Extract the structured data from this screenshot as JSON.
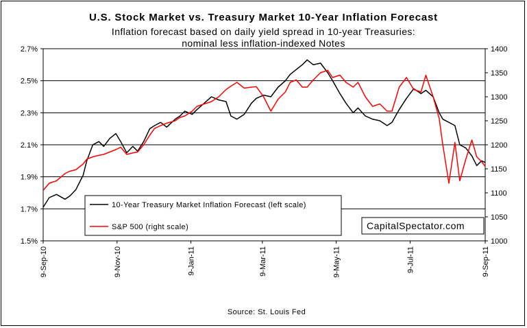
{
  "chart_data": {
    "type": "line",
    "title": "U.S. Stock Market vs. Treasury Market 10-Year Inflation Forecast",
    "subtitle_line1": "Inflation forecast based on daily yield spread in 10-year Treasuries:",
    "subtitle_line2": "nominal less inflation-indexed Notes",
    "source": "Source: St. Louis Fed",
    "watermark": "CapitalSpectator.com",
    "x_tick_labels": [
      "9-Sep-10",
      "9-Nov-10",
      "9-Jan-11",
      "9-Mar-11",
      "9-May-11",
      "9-Jul-11",
      "9-Sep-11"
    ],
    "y_left": {
      "ticks": [
        "1.5%",
        "1.7%",
        "1.9%",
        "2.1%",
        "2.3%",
        "2.5%",
        "2.7%"
      ],
      "min": 1.5,
      "max": 2.7
    },
    "y_right": {
      "ticks": [
        "1000",
        "1050",
        "1100",
        "1150",
        "1200",
        "1250",
        "1300",
        "1350",
        "1400"
      ],
      "min": 1000,
      "max": 1400
    },
    "grid": "horizontal",
    "legend_position": "bottom-left inside plot",
    "series": [
      {
        "name": "10-Year Treasury Market Inflation Forecast (left scale)",
        "axis": "left",
        "color": "#000000",
        "points": [
          [
            "2010-09-09",
            1.71
          ],
          [
            "2010-09-14",
            1.77
          ],
          [
            "2010-09-20",
            1.79
          ],
          [
            "2010-09-27",
            1.76
          ],
          [
            "2010-10-01",
            1.78
          ],
          [
            "2010-10-06",
            1.82
          ],
          [
            "2010-10-12",
            1.91
          ],
          [
            "2010-10-15",
            2.0
          ],
          [
            "2010-10-20",
            2.1
          ],
          [
            "2010-10-25",
            2.12
          ],
          [
            "2010-10-29",
            2.09
          ],
          [
            "2010-11-03",
            2.14
          ],
          [
            "2010-11-08",
            2.17
          ],
          [
            "2010-11-12",
            2.12
          ],
          [
            "2010-11-17",
            2.05
          ],
          [
            "2010-11-22",
            2.09
          ],
          [
            "2010-11-26",
            2.06
          ],
          [
            "2010-12-01",
            2.12
          ],
          [
            "2010-12-06",
            2.2
          ],
          [
            "2010-12-10",
            2.22
          ],
          [
            "2010-12-15",
            2.24
          ],
          [
            "2010-12-20",
            2.21
          ],
          [
            "2010-12-27",
            2.26
          ],
          [
            "2010-12-31",
            2.28
          ],
          [
            "2011-01-04",
            2.31
          ],
          [
            "2011-01-10",
            2.29
          ],
          [
            "2011-01-14",
            2.32
          ],
          [
            "2011-01-20",
            2.36
          ],
          [
            "2011-01-26",
            2.4
          ],
          [
            "2011-02-01",
            2.38
          ],
          [
            "2011-02-07",
            2.37
          ],
          [
            "2011-02-11",
            2.28
          ],
          [
            "2011-02-16",
            2.26
          ],
          [
            "2011-02-22",
            2.29
          ],
          [
            "2011-02-28",
            2.36
          ],
          [
            "2011-03-04",
            2.39
          ],
          [
            "2011-03-10",
            2.41
          ],
          [
            "2011-03-16",
            2.4
          ],
          [
            "2011-03-22",
            2.46
          ],
          [
            "2011-03-28",
            2.5
          ],
          [
            "2011-04-01",
            2.54
          ],
          [
            "2011-04-06",
            2.57
          ],
          [
            "2011-04-11",
            2.6
          ],
          [
            "2011-04-15",
            2.63
          ],
          [
            "2011-04-20",
            2.6
          ],
          [
            "2011-04-26",
            2.61
          ],
          [
            "2011-05-02",
            2.55
          ],
          [
            "2011-05-06",
            2.5
          ],
          [
            "2011-05-12",
            2.42
          ],
          [
            "2011-05-17",
            2.36
          ],
          [
            "2011-05-23",
            2.3
          ],
          [
            "2011-05-27",
            2.33
          ],
          [
            "2011-06-02",
            2.28
          ],
          [
            "2011-06-08",
            2.26
          ],
          [
            "2011-06-14",
            2.25
          ],
          [
            "2011-06-20",
            2.22
          ],
          [
            "2011-06-24",
            2.24
          ],
          [
            "2011-06-30",
            2.32
          ],
          [
            "2011-07-06",
            2.39
          ],
          [
            "2011-07-12",
            2.45
          ],
          [
            "2011-07-18",
            2.42
          ],
          [
            "2011-07-22",
            2.44
          ],
          [
            "2011-07-28",
            2.4
          ],
          [
            "2011-08-02",
            2.3
          ],
          [
            "2011-08-05",
            2.26
          ],
          [
            "2011-08-10",
            2.24
          ],
          [
            "2011-08-15",
            2.22
          ],
          [
            "2011-08-19",
            2.1
          ],
          [
            "2011-08-24",
            2.08
          ],
          [
            "2011-08-29",
            2.03
          ],
          [
            "2011-09-02",
            1.97
          ],
          [
            "2011-09-06",
            2.0
          ],
          [
            "2011-09-09",
            1.99
          ]
        ]
      },
      {
        "name": "S&P 500 (right scale)",
        "axis": "right",
        "color": "#ff0000",
        "points": [
          [
            "2010-09-09",
            1105
          ],
          [
            "2010-09-14",
            1120
          ],
          [
            "2010-09-20",
            1125
          ],
          [
            "2010-09-27",
            1140
          ],
          [
            "2010-10-01",
            1145
          ],
          [
            "2010-10-06",
            1148
          ],
          [
            "2010-10-12",
            1160
          ],
          [
            "2010-10-15",
            1170
          ],
          [
            "2010-10-20",
            1175
          ],
          [
            "2010-10-25",
            1178
          ],
          [
            "2010-10-29",
            1180
          ],
          [
            "2010-11-03",
            1185
          ],
          [
            "2010-11-08",
            1190
          ],
          [
            "2010-11-12",
            1195
          ],
          [
            "2010-11-17",
            1180
          ],
          [
            "2010-11-22",
            1183
          ],
          [
            "2010-11-26",
            1185
          ],
          [
            "2010-12-01",
            1200
          ],
          [
            "2010-12-06",
            1220
          ],
          [
            "2010-12-10",
            1234
          ],
          [
            "2010-12-15",
            1240
          ],
          [
            "2010-12-20",
            1245
          ],
          [
            "2010-12-27",
            1250
          ],
          [
            "2010-12-31",
            1257
          ],
          [
            "2011-01-04",
            1260
          ],
          [
            "2011-01-10",
            1270
          ],
          [
            "2011-01-14",
            1280
          ],
          [
            "2011-01-20",
            1285
          ],
          [
            "2011-01-26",
            1290
          ],
          [
            "2011-02-01",
            1300
          ],
          [
            "2011-02-07",
            1315
          ],
          [
            "2011-02-11",
            1322
          ],
          [
            "2011-02-16",
            1330
          ],
          [
            "2011-02-22",
            1318
          ],
          [
            "2011-02-28",
            1320
          ],
          [
            "2011-03-04",
            1321
          ],
          [
            "2011-03-10",
            1300
          ],
          [
            "2011-03-16",
            1270
          ],
          [
            "2011-03-22",
            1295
          ],
          [
            "2011-03-28",
            1310
          ],
          [
            "2011-04-01",
            1330
          ],
          [
            "2011-04-06",
            1335
          ],
          [
            "2011-04-11",
            1320
          ],
          [
            "2011-04-15",
            1320
          ],
          [
            "2011-04-20",
            1335
          ],
          [
            "2011-04-26",
            1350
          ],
          [
            "2011-05-02",
            1355
          ],
          [
            "2011-05-06",
            1340
          ],
          [
            "2011-05-12",
            1345
          ],
          [
            "2011-05-17",
            1330
          ],
          [
            "2011-05-23",
            1320
          ],
          [
            "2011-05-27",
            1330
          ],
          [
            "2011-06-02",
            1300
          ],
          [
            "2011-06-08",
            1280
          ],
          [
            "2011-06-14",
            1285
          ],
          [
            "2011-06-20",
            1270
          ],
          [
            "2011-06-24",
            1270
          ],
          [
            "2011-06-30",
            1320
          ],
          [
            "2011-07-06",
            1340
          ],
          [
            "2011-07-12",
            1315
          ],
          [
            "2011-07-18",
            1310
          ],
          [
            "2011-07-22",
            1345
          ],
          [
            "2011-07-28",
            1300
          ],
          [
            "2011-08-02",
            1255
          ],
          [
            "2011-08-05",
            1200
          ],
          [
            "2011-08-10",
            1120
          ],
          [
            "2011-08-15",
            1205
          ],
          [
            "2011-08-19",
            1125
          ],
          [
            "2011-08-24",
            1170
          ],
          [
            "2011-08-29",
            1210
          ],
          [
            "2011-09-02",
            1175
          ],
          [
            "2011-09-06",
            1165
          ],
          [
            "2011-09-09",
            1155
          ]
        ]
      }
    ]
  }
}
